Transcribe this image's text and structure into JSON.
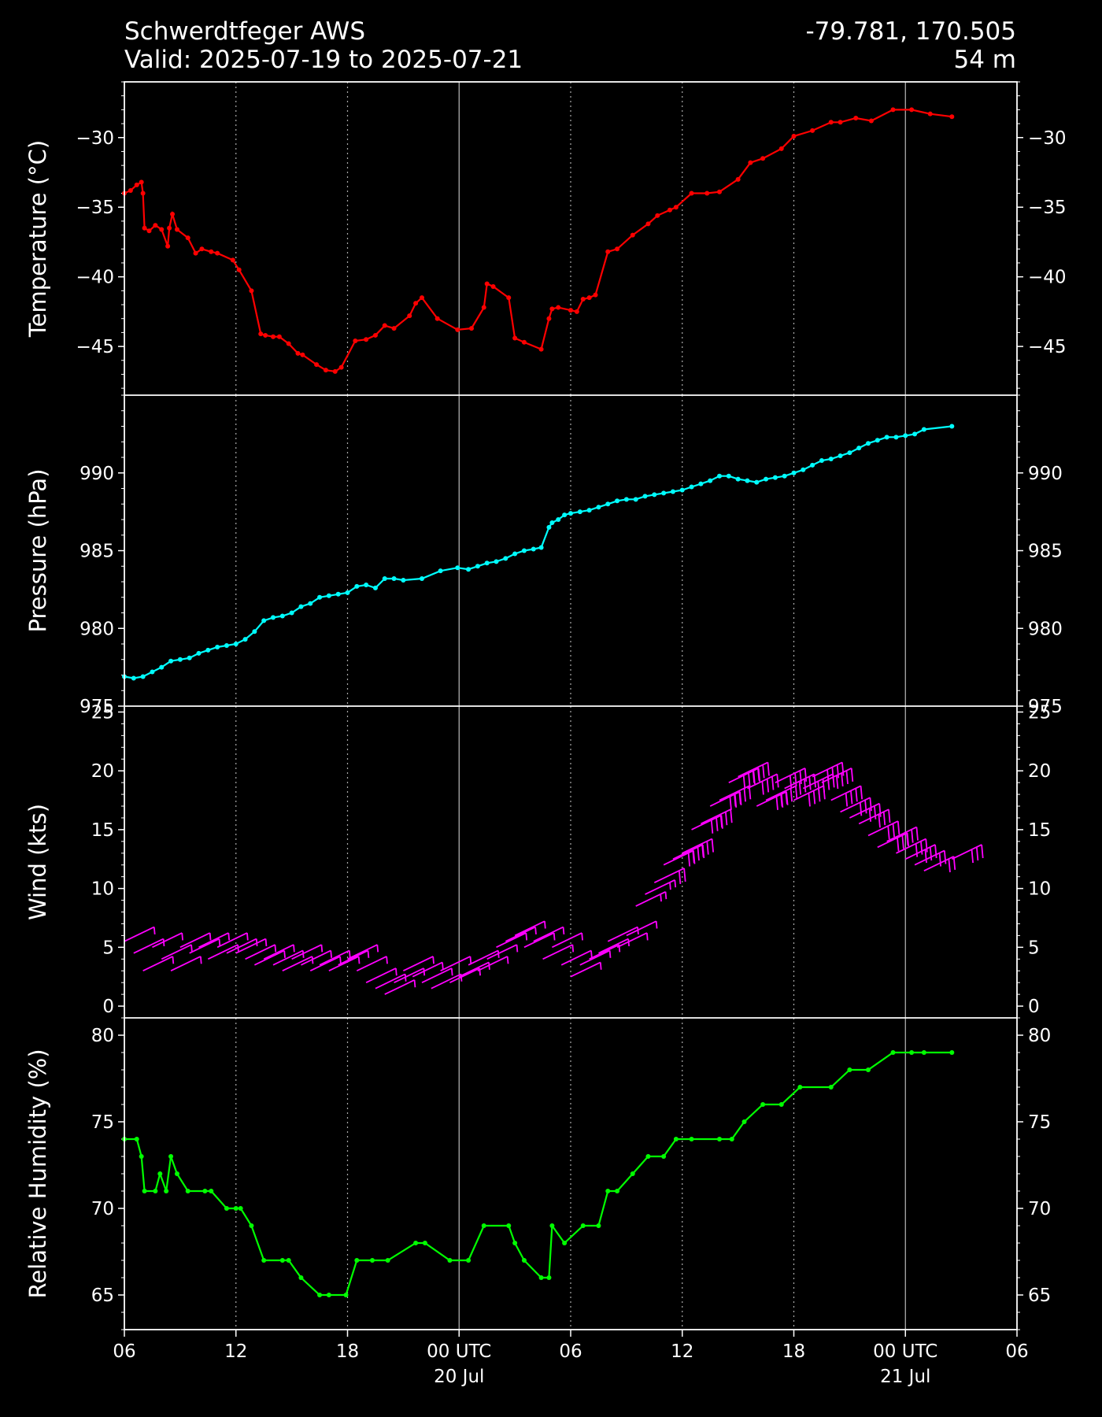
{
  "header": {
    "station": "Schwerdtfeger AWS",
    "valid": "Valid: 2025-07-19 to 2025-07-21",
    "coords": "-79.781, 170.505",
    "elevation": "54 m"
  },
  "x_axis": {
    "ticks": [
      {
        "t": 0,
        "label": "06"
      },
      {
        "t": 6,
        "label": "12"
      },
      {
        "t": 12,
        "label": "18"
      },
      {
        "t": 18,
        "label": "00 UTC",
        "sub": "20 Jul"
      },
      {
        "t": 24,
        "label": "06"
      },
      {
        "t": 30,
        "label": "12"
      },
      {
        "t": 36,
        "label": "18"
      },
      {
        "t": 42,
        "label": "00 UTC",
        "sub": "21 Jul"
      },
      {
        "t": 48,
        "label": "06"
      }
    ],
    "range": [
      "2025-07-19 06:00 UTC",
      "2025-07-21 06:00 UTC"
    ]
  },
  "colors": {
    "temperature": "#ff0000",
    "pressure": "#00ffff",
    "wind": "#ff00ff",
    "humidity": "#00ff00",
    "axes": "#ffffff",
    "background": "#000000"
  },
  "chart_data": [
    {
      "type": "line",
      "ylabel": "Temperature (°C)",
      "ylim": [
        -48.5,
        -26
      ],
      "yticks": [
        -30,
        -35,
        -40,
        -45
      ],
      "ytick_labels": [
        "−30",
        "−35",
        "−40",
        "−45"
      ],
      "x": [
        "2025-07-19 06:00",
        "2025-07-19 06:20",
        "2025-07-19 06:40",
        "2025-07-19 06:55",
        "2025-07-19 07:00",
        "2025-07-19 07:05",
        "2025-07-19 07:20",
        "2025-07-19 07:40",
        "2025-07-19 08:00",
        "2025-07-19 08:20",
        "2025-07-19 08:25",
        "2025-07-19 08:35",
        "2025-07-19 08:50",
        "2025-07-19 09:25",
        "2025-07-19 09:50",
        "2025-07-19 10:10",
        "2025-07-19 10:40",
        "2025-07-19 11:00",
        "2025-07-19 11:50",
        "2025-07-19 12:10",
        "2025-07-19 12:50",
        "2025-07-19 13:20",
        "2025-07-19 13:35",
        "2025-07-19 14:00",
        "2025-07-19 14:20",
        "2025-07-19 14:50",
        "2025-07-19 15:20",
        "2025-07-19 15:35",
        "2025-07-19 16:20",
        "2025-07-19 16:50",
        "2025-07-19 17:20",
        "2025-07-19 17:40",
        "2025-07-19 18:25",
        "2025-07-19 19:00",
        "2025-07-19 19:30",
        "2025-07-19 20:00",
        "2025-07-19 20:30",
        "2025-07-19 21:20",
        "2025-07-19 21:40",
        "2025-07-19 22:00",
        "2025-07-19 22:50",
        "2025-07-19 23:55",
        "2025-07-20 00:40",
        "2025-07-20 01:20",
        "2025-07-20 01:30",
        "2025-07-20 01:50",
        "2025-07-20 02:40",
        "2025-07-20 03:00",
        "2025-07-20 03:30",
        "2025-07-20 04:25",
        "2025-07-20 04:50",
        "2025-07-20 05:00",
        "2025-07-20 05:20",
        "2025-07-20 06:00",
        "2025-07-20 06:20",
        "2025-07-20 06:40",
        "2025-07-20 07:00",
        "2025-07-20 07:20",
        "2025-07-20 08:00",
        "2025-07-20 08:30",
        "2025-07-20 09:20",
        "2025-07-20 10:10",
        "2025-07-20 10:40",
        "2025-07-20 11:20",
        "2025-07-20 11:40",
        "2025-07-20 12:30",
        "2025-07-20 13:20",
        "2025-07-20 14:00",
        "2025-07-20 15:00",
        "2025-07-20 15:40",
        "2025-07-20 16:20",
        "2025-07-20 17:20",
        "2025-07-20 18:00",
        "2025-07-20 19:00",
        "2025-07-20 20:00",
        "2025-07-20 20:30",
        "2025-07-20 21:20",
        "2025-07-20 22:10",
        "2025-07-20 23:20",
        "2025-07-21 00:20",
        "2025-07-21 01:20",
        "2025-07-21 02:30"
      ],
      "series": [
        {
          "values": [
            -34.0,
            -33.8,
            -33.4,
            -33.2,
            -34.0,
            -36.5,
            -36.7,
            -36.3,
            -36.6,
            -37.8,
            -36.5,
            -35.5,
            -36.6,
            -37.2,
            -38.3,
            -38.0,
            -38.2,
            -38.3,
            -38.8,
            -39.5,
            -41.0,
            -44.1,
            -44.2,
            -44.3,
            -44.3,
            -44.8,
            -45.5,
            -45.6,
            -46.3,
            -46.7,
            -46.8,
            -46.5,
            -44.6,
            -44.5,
            -44.2,
            -43.5,
            -43.7,
            -42.8,
            -41.9,
            -41.5,
            -43.0,
            -43.8,
            -43.7,
            -42.2,
            -40.5,
            -40.7,
            -41.5,
            -44.4,
            -44.7,
            -45.2,
            -43.0,
            -42.3,
            -42.2,
            -42.4,
            -42.5,
            -41.6,
            -41.5,
            -41.3,
            -38.2,
            -38.0,
            -37.0,
            -36.2,
            -35.6,
            -35.2,
            -35.0,
            -34.0,
            -34.0,
            -33.9,
            -33.0,
            -31.8,
            -31.5,
            -30.8,
            -29.9,
            -29.5,
            -28.9,
            -28.9,
            -28.6,
            -28.8,
            -28.0,
            -28.0,
            -28.3,
            -28.5
          ]
        }
      ]
    },
    {
      "type": "line",
      "ylabel": "Pressure (hPa)",
      "ylim": [
        975,
        995
      ],
      "yticks": [
        990,
        985,
        980,
        975
      ],
      "ytick_labels": [
        "990",
        "985",
        "980",
        "975"
      ],
      "x": [
        "2025-07-19 06:00",
        "2025-07-19 06:30",
        "2025-07-19 07:00",
        "2025-07-19 07:30",
        "2025-07-19 08:00",
        "2025-07-19 08:30",
        "2025-07-19 09:00",
        "2025-07-19 09:30",
        "2025-07-19 10:00",
        "2025-07-19 10:30",
        "2025-07-19 11:00",
        "2025-07-19 11:30",
        "2025-07-19 12:00",
        "2025-07-19 12:30",
        "2025-07-19 13:00",
        "2025-07-19 13:30",
        "2025-07-19 14:00",
        "2025-07-19 14:30",
        "2025-07-19 15:00",
        "2025-07-19 15:30",
        "2025-07-19 16:00",
        "2025-07-19 16:30",
        "2025-07-19 17:00",
        "2025-07-19 17:30",
        "2025-07-19 18:00",
        "2025-07-19 18:30",
        "2025-07-19 19:00",
        "2025-07-19 19:30",
        "2025-07-19 20:00",
        "2025-07-19 20:30",
        "2025-07-19 21:00",
        "2025-07-19 22:00",
        "2025-07-19 23:00",
        "2025-07-19 23:55",
        "2025-07-20 00:30",
        "2025-07-20 01:00",
        "2025-07-20 01:30",
        "2025-07-20 02:00",
        "2025-07-20 02:30",
        "2025-07-20 03:00",
        "2025-07-20 03:30",
        "2025-07-20 04:00",
        "2025-07-20 04:25",
        "2025-07-20 04:50",
        "2025-07-20 05:00",
        "2025-07-20 05:20",
        "2025-07-20 05:40",
        "2025-07-20 06:00",
        "2025-07-20 06:30",
        "2025-07-20 07:00",
        "2025-07-20 07:30",
        "2025-07-20 08:00",
        "2025-07-20 08:30",
        "2025-07-20 09:00",
        "2025-07-20 09:30",
        "2025-07-20 10:00",
        "2025-07-20 10:30",
        "2025-07-20 11:00",
        "2025-07-20 11:30",
        "2025-07-20 12:00",
        "2025-07-20 12:30",
        "2025-07-20 13:00",
        "2025-07-20 13:30",
        "2025-07-20 14:00",
        "2025-07-20 14:30",
        "2025-07-20 15:00",
        "2025-07-20 15:30",
        "2025-07-20 16:00",
        "2025-07-20 16:30",
        "2025-07-20 17:00",
        "2025-07-20 17:30",
        "2025-07-20 18:00",
        "2025-07-20 18:30",
        "2025-07-20 19:00",
        "2025-07-20 19:30",
        "2025-07-20 20:00",
        "2025-07-20 20:30",
        "2025-07-20 21:00",
        "2025-07-20 21:30",
        "2025-07-20 22:00",
        "2025-07-20 22:30",
        "2025-07-20 23:00",
        "2025-07-20 23:30",
        "2025-07-21 00:00",
        "2025-07-21 00:30",
        "2025-07-21 01:00",
        "2025-07-21 02:30"
      ],
      "series": [
        {
          "values": [
            976.9,
            976.8,
            976.9,
            977.2,
            977.5,
            977.9,
            978.0,
            978.1,
            978.4,
            978.6,
            978.8,
            978.9,
            979.0,
            979.3,
            979.8,
            980.5,
            980.7,
            980.8,
            981.0,
            981.4,
            981.6,
            982.0,
            982.1,
            982.2,
            982.3,
            982.7,
            982.8,
            982.6,
            983.2,
            983.2,
            983.1,
            983.2,
            983.7,
            983.9,
            983.8,
            984.0,
            984.2,
            984.3,
            984.5,
            984.8,
            985.0,
            985.1,
            985.2,
            986.5,
            986.8,
            987.0,
            987.3,
            987.4,
            987.5,
            987.6,
            987.8,
            988.0,
            988.2,
            988.3,
            988.3,
            988.5,
            988.6,
            988.7,
            988.8,
            988.9,
            989.1,
            989.3,
            989.5,
            989.8,
            989.8,
            989.6,
            989.5,
            989.4,
            989.6,
            989.7,
            989.8,
            990.0,
            990.2,
            990.5,
            990.8,
            990.9,
            991.1,
            991.3,
            991.6,
            991.9,
            992.1,
            992.3,
            992.3,
            992.4,
            992.5,
            992.8,
            993.0
          ]
        }
      ]
    },
    {
      "type": "scatter",
      "mark": "wind barbs",
      "ylabel": "Wind (kts)",
      "ylim": [
        -1,
        25.5
      ],
      "yticks": [
        25,
        20,
        15,
        10,
        5,
        0
      ],
      "ytick_labels": [
        "25",
        "20",
        "15",
        "10",
        "5",
        "0"
      ],
      "x": [
        "2025-07-19 06:00",
        "2025-07-19 06:30",
        "2025-07-19 07:00",
        "2025-07-19 07:30",
        "2025-07-19 08:00",
        "2025-07-19 08:30",
        "2025-07-19 09:00",
        "2025-07-19 09:30",
        "2025-07-19 10:00",
        "2025-07-19 10:30",
        "2025-07-19 11:00",
        "2025-07-19 11:30",
        "2025-07-19 12:00",
        "2025-07-19 12:30",
        "2025-07-19 13:00",
        "2025-07-19 13:30",
        "2025-07-19 14:00",
        "2025-07-19 14:30",
        "2025-07-19 15:00",
        "2025-07-19 15:30",
        "2025-07-19 16:00",
        "2025-07-19 16:30",
        "2025-07-19 17:00",
        "2025-07-19 17:30",
        "2025-07-19 18:00",
        "2025-07-19 18:30",
        "2025-07-19 19:00",
        "2025-07-19 19:30",
        "2025-07-19 20:00",
        "2025-07-19 20:30",
        "2025-07-19 21:00",
        "2025-07-19 21:30",
        "2025-07-19 22:00",
        "2025-07-19 22:30",
        "2025-07-19 23:00",
        "2025-07-19 23:30",
        "2025-07-20 00:00",
        "2025-07-20 00:30",
        "2025-07-20 01:00",
        "2025-07-20 01:30",
        "2025-07-20 02:00",
        "2025-07-20 02:30",
        "2025-07-20 03:00",
        "2025-07-20 03:30",
        "2025-07-20 04:00",
        "2025-07-20 04:30",
        "2025-07-20 05:00",
        "2025-07-20 05:30",
        "2025-07-20 06:00",
        "2025-07-20 06:30",
        "2025-07-20 07:00",
        "2025-07-20 07:30",
        "2025-07-20 08:00",
        "2025-07-20 08:30",
        "2025-07-20 09:00",
        "2025-07-20 09:30",
        "2025-07-20 10:00",
        "2025-07-20 10:30",
        "2025-07-20 11:00",
        "2025-07-20 11:30",
        "2025-07-20 12:00",
        "2025-07-20 12:30",
        "2025-07-20 13:00",
        "2025-07-20 13:30",
        "2025-07-20 14:00",
        "2025-07-20 14:30",
        "2025-07-20 15:00",
        "2025-07-20 15:30",
        "2025-07-20 16:00",
        "2025-07-20 16:30",
        "2025-07-20 17:00",
        "2025-07-20 17:30",
        "2025-07-20 18:00",
        "2025-07-20 18:30",
        "2025-07-20 19:00",
        "2025-07-20 19:30",
        "2025-07-20 20:00",
        "2025-07-20 20:30",
        "2025-07-20 21:00",
        "2025-07-20 21:30",
        "2025-07-20 22:00",
        "2025-07-20 22:30",
        "2025-07-20 23:00",
        "2025-07-20 23:30",
        "2025-07-21 00:00",
        "2025-07-21 00:30",
        "2025-07-21 01:00",
        "2025-07-21 02:30"
      ],
      "series": [
        {
          "values": [
            5.5,
            4.5,
            3.0,
            5.0,
            4.0,
            3.0,
            5.0,
            4.5,
            5.0,
            4.0,
            5.0,
            4.5,
            4.5,
            4.0,
            3.5,
            4.0,
            3.5,
            3.0,
            4.0,
            3.5,
            3.0,
            3.5,
            3.0,
            3.5,
            4.0,
            3.0,
            2.0,
            1.5,
            1.0,
            2.0,
            3.0,
            2.5,
            2.0,
            1.5,
            3.0,
            2.0,
            2.5,
            3.5,
            3.0,
            4.0,
            5.0,
            5.5,
            6.0,
            5.0,
            5.5,
            4.0,
            5.0,
            3.5,
            2.5,
            3.5,
            4.0,
            4.5,
            5.5,
            5.0,
            6.0,
            8.5,
            9.5,
            10.5,
            12.0,
            12.5,
            13.0,
            15.0,
            15.5,
            17.0,
            17.5,
            19.0,
            19.5,
            18.5,
            17.0,
            17.5,
            19.0,
            18.5,
            17.5,
            18.5,
            19.5,
            19.0,
            17.5,
            16.5,
            16.0,
            15.5,
            14.5,
            13.5,
            14.0,
            13.0,
            12.5,
            12.0,
            11.5,
            12.5
          ]
        }
      ]
    },
    {
      "type": "line",
      "ylabel": "Relative Humidity (%)",
      "ylim": [
        63,
        81
      ],
      "yticks": [
        80,
        75,
        70,
        65
      ],
      "ytick_labels": [
        "80",
        "75",
        "70",
        "65"
      ],
      "x": [
        "2025-07-19 06:00",
        "2025-07-19 06:40",
        "2025-07-19 06:55",
        "2025-07-19 07:05",
        "2025-07-19 07:40",
        "2025-07-19 07:55",
        "2025-07-19 08:15",
        "2025-07-19 08:30",
        "2025-07-19 08:50",
        "2025-07-19 09:25",
        "2025-07-19 10:20",
        "2025-07-19 10:40",
        "2025-07-19 11:30",
        "2025-07-19 12:00",
        "2025-07-19 12:15",
        "2025-07-19 12:50",
        "2025-07-19 13:30",
        "2025-07-19 14:30",
        "2025-07-19 14:50",
        "2025-07-19 15:30",
        "2025-07-19 16:30",
        "2025-07-19 17:00",
        "2025-07-19 17:55",
        "2025-07-19 18:30",
        "2025-07-19 19:20",
        "2025-07-19 20:10",
        "2025-07-19 21:40",
        "2025-07-19 22:10",
        "2025-07-19 23:30",
        "2025-07-20 00:30",
        "2025-07-20 01:20",
        "2025-07-20 02:40",
        "2025-07-20 03:00",
        "2025-07-20 03:30",
        "2025-07-20 04:25",
        "2025-07-20 04:50",
        "2025-07-20 05:00",
        "2025-07-20 05:40",
        "2025-07-20 06:40",
        "2025-07-20 07:30",
        "2025-07-20 08:00",
        "2025-07-20 08:30",
        "2025-07-20 09:20",
        "2025-07-20 10:10",
        "2025-07-20 11:00",
        "2025-07-20 11:40",
        "2025-07-20 12:30",
        "2025-07-20 14:00",
        "2025-07-20 14:40",
        "2025-07-20 15:20",
        "2025-07-20 16:20",
        "2025-07-20 17:20",
        "2025-07-20 18:20",
        "2025-07-20 20:00",
        "2025-07-20 21:00",
        "2025-07-20 22:00",
        "2025-07-20 23:20",
        "2025-07-21 00:20",
        "2025-07-21 01:00",
        "2025-07-21 02:30"
      ],
      "series": [
        {
          "values": [
            74,
            74,
            73,
            71,
            71,
            72,
            71,
            73,
            72,
            71,
            71,
            71,
            70,
            70,
            70,
            69,
            67,
            67,
            67,
            66,
            65,
            65,
            65,
            67,
            67,
            67,
            68,
            68,
            67,
            67,
            69,
            69,
            68,
            67,
            66,
            66,
            69,
            68,
            69,
            69,
            71,
            71,
            72,
            73,
            73,
            74,
            74,
            74,
            74,
            75,
            76,
            76,
            77,
            77,
            78,
            78,
            79,
            79,
            79,
            79
          ]
        }
      ]
    }
  ]
}
